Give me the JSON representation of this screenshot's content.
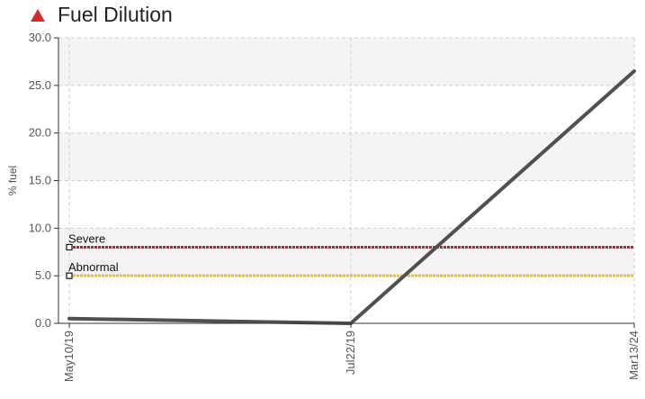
{
  "chart_data": {
    "type": "line",
    "title": "Fuel Dilution",
    "ylabel": "% fuel",
    "ylim": [
      0,
      30
    ],
    "yticks": [
      "0.0",
      "5.0",
      "10.0",
      "15.0",
      "20.0",
      "25.0",
      "30.0"
    ],
    "categories": [
      "May10/19",
      "Jul22/19",
      "Mar13/24"
    ],
    "series": [
      {
        "values": [
          0.5,
          0.0,
          26.5
        ],
        "color": "#505050"
      }
    ],
    "thresholds": [
      {
        "name": "Severe",
        "value": 8.0,
        "color": "#e8101a"
      },
      {
        "name": "Abnormal",
        "value": 5.0,
        "color": "#f2c200"
      }
    ],
    "grid": true,
    "title_icon": "warning-triangle-icon",
    "title_icon_color": "#d42a2a"
  }
}
